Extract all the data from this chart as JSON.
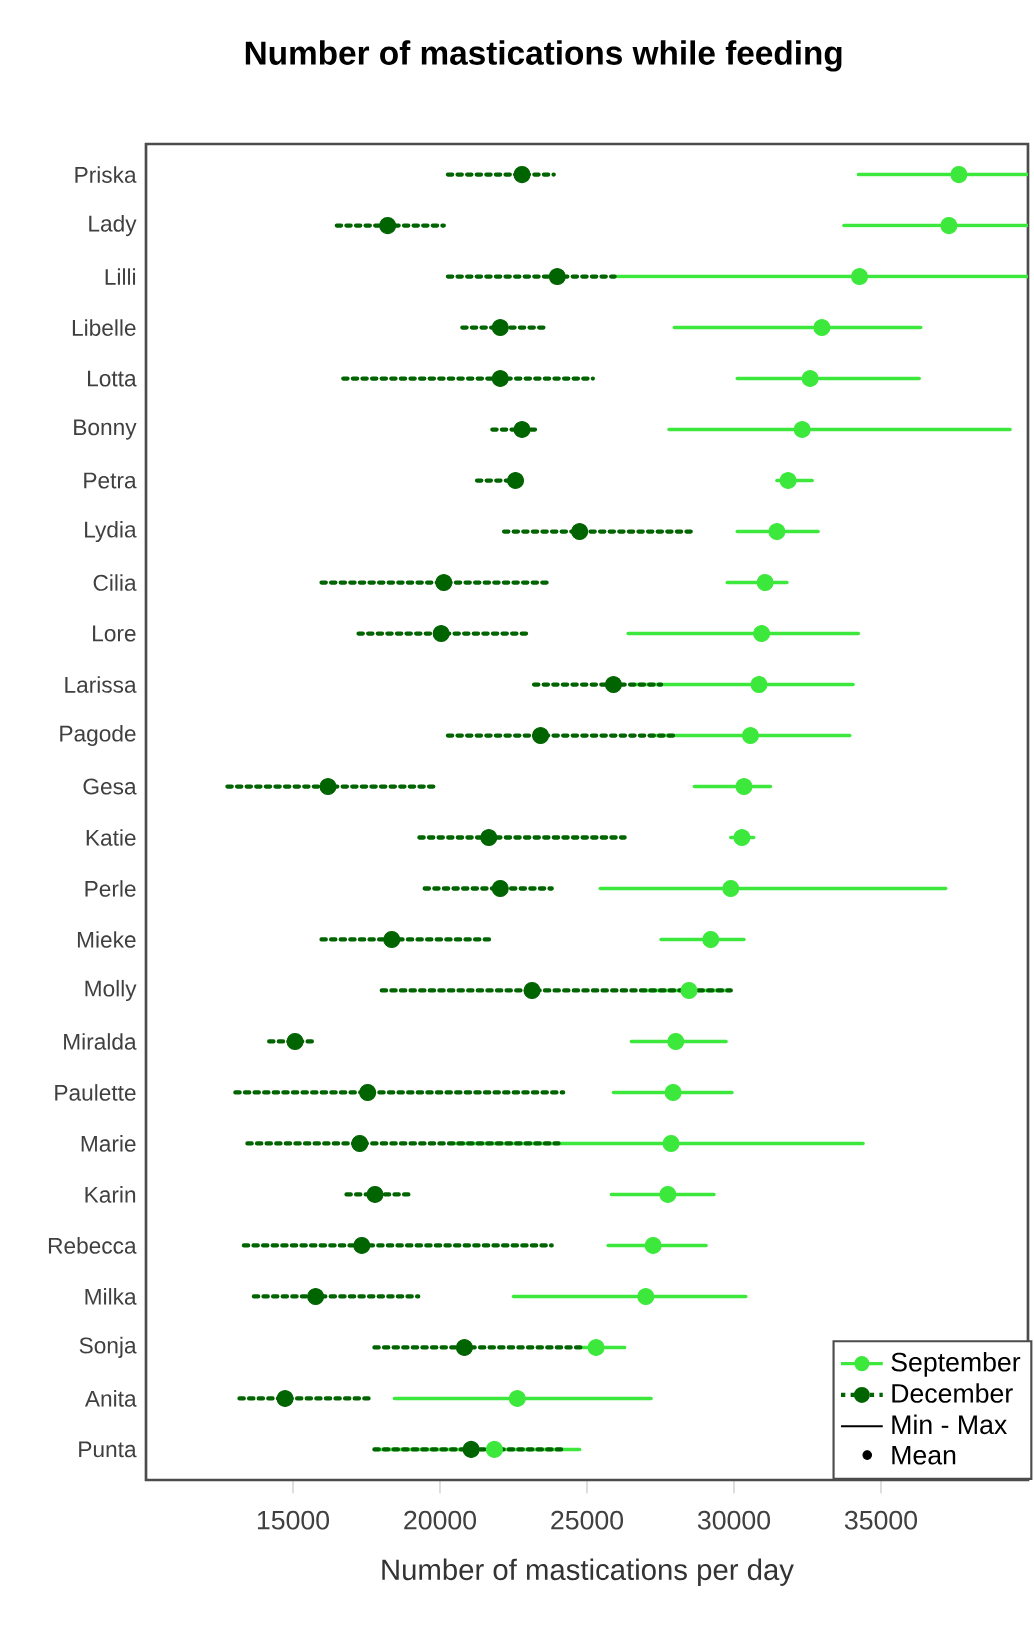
{
  "chart_data": {
    "type": "scatter",
    "orientation": "horizontal",
    "title": "Number of mastications while feeding",
    "xlabel": "Number of mastications per day",
    "categories": [
      "Priska",
      "Lady",
      "Lilli",
      "Libelle",
      "Lotta",
      "Bonny",
      "Petra",
      "Lydia",
      "Cilia",
      "Lore",
      "Larissa",
      "Pagode",
      "Gesa",
      "Katie",
      "Perle",
      "Mieke",
      "Molly",
      "Miralda",
      "Paulette",
      "Marie",
      "Karin",
      "Rebecca",
      "Milka",
      "Sonja",
      "Anita",
      "Punta"
    ],
    "xlim": [
      10000,
      40000
    ],
    "xticks": [
      15000,
      20000,
      25000,
      30000,
      35000
    ],
    "marker": "circle",
    "grid": false,
    "legend": "bottom right",
    "annotations": [
      "Min - Max",
      "Mean"
    ],
    "series": [
      {
        "name": "September",
        "color": "#3ce83c",
        "line_style": "solid",
        "values": [
          37650,
          37310,
          34270,
          32990,
          32590,
          32320,
          31840,
          31460,
          31060,
          30940,
          30850,
          30560,
          30340,
          30270,
          29890,
          29210,
          28470,
          28020,
          27930,
          27860,
          27750,
          27250,
          27000,
          25310,
          22630,
          21850
        ],
        "errors": [
          [
            34230,
            40000
          ],
          [
            33740,
            40000
          ],
          [
            25940,
            40000
          ],
          [
            27970,
            36350
          ],
          [
            30110,
            36300
          ],
          [
            27790,
            39390
          ],
          [
            31460,
            32660
          ],
          [
            30110,
            32860
          ],
          [
            29770,
            31800
          ],
          [
            26400,
            34230
          ],
          [
            26620,
            34050
          ],
          [
            27180,
            33940
          ],
          [
            28650,
            31240
          ],
          [
            29890,
            30670
          ],
          [
            25450,
            37200
          ],
          [
            27520,
            30340
          ],
          [
            26960,
            29890
          ],
          [
            26510,
            29730
          ],
          [
            25900,
            29930
          ],
          [
            20540,
            34390
          ],
          [
            25830,
            29320
          ],
          [
            25720,
            29050
          ],
          [
            22500,
            30400
          ],
          [
            24820,
            26280
          ],
          [
            18450,
            27180
          ],
          [
            17770,
            24750
          ]
        ]
      },
      {
        "name": "December",
        "color": "#006400",
        "line_style": "dotted",
        "values": [
          22790,
          18220,
          23990,
          22050,
          22050,
          22790,
          22570,
          24750,
          20130,
          20040,
          25900,
          23420,
          16190,
          21660,
          22050,
          18360,
          23130,
          15070,
          17540,
          17270,
          17790,
          17340,
          15770,
          20830,
          14730,
          21060
        ],
        "errors": [
          [
            20270,
            23870
          ],
          [
            16490,
            20130
          ],
          [
            20270,
            25940
          ],
          [
            20760,
            23690
          ],
          [
            16710,
            25200
          ],
          [
            21780,
            23350
          ],
          [
            21260,
            22840
          ],
          [
            22180,
            28580
          ],
          [
            15970,
            23690
          ],
          [
            17230,
            23010
          ],
          [
            23200,
            27520
          ],
          [
            20270,
            28020
          ],
          [
            12770,
            19860
          ],
          [
            19300,
            26280
          ],
          [
            19480,
            23800
          ],
          [
            15970,
            21710
          ],
          [
            18020,
            29890
          ],
          [
            14190,
            15700
          ],
          [
            13040,
            24190
          ],
          [
            13450,
            24030
          ],
          [
            16820,
            19080
          ],
          [
            13330,
            23800
          ],
          [
            13670,
            19260
          ],
          [
            17770,
            24820
          ],
          [
            13180,
            17570
          ],
          [
            17770,
            24140
          ]
        ]
      }
    ]
  }
}
